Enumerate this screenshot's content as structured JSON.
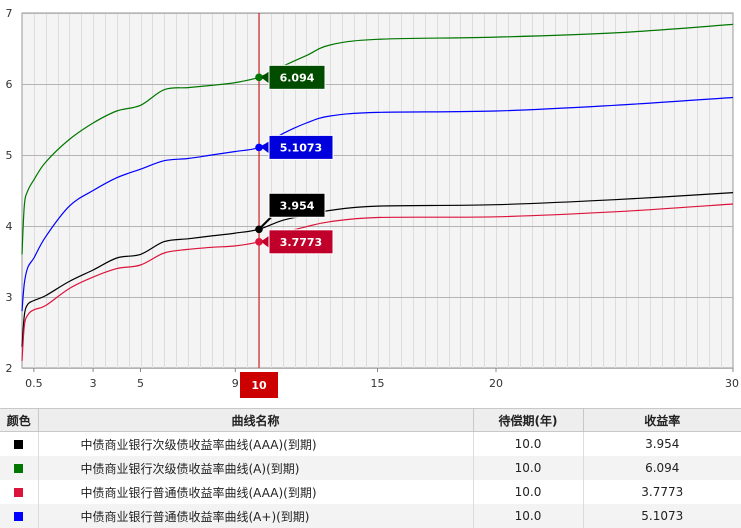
{
  "chart_data": {
    "type": "line",
    "xlim": [
      0,
      30
    ],
    "ylim": [
      2,
      7
    ],
    "x_ticks": [
      0.5,
      3,
      5,
      9,
      15,
      20,
      30
    ],
    "y_ticks": [
      2,
      3,
      4,
      5,
      6,
      7
    ],
    "grid": true,
    "cursor": {
      "x": 10,
      "label": "10",
      "color": "#cc0000"
    },
    "series": [
      {
        "name": "中债商业银行次级债收益率曲线(AAA)(到期)",
        "color": "#000000",
        "x": [
          0,
          0.1,
          0.25,
          0.5,
          1,
          2,
          3,
          4,
          5,
          6,
          7,
          8,
          9,
          10,
          11,
          12,
          13,
          15,
          20,
          25,
          30
        ],
        "y": [
          2.3,
          2.75,
          2.9,
          2.95,
          3.02,
          3.22,
          3.38,
          3.55,
          3.6,
          3.78,
          3.82,
          3.86,
          3.9,
          3.954,
          4.08,
          4.15,
          4.22,
          4.28,
          4.3,
          4.37,
          4.47
        ],
        "cursor_value": "3.954",
        "tag_color": "#000000"
      },
      {
        "name": "中债商业银行次级债收益率曲线(A)(到期)",
        "color": "#007700",
        "x": [
          0,
          0.1,
          0.25,
          0.5,
          1,
          2,
          3,
          4,
          5,
          6,
          7,
          8,
          9,
          10,
          11,
          12,
          13,
          15,
          20,
          25,
          30
        ],
        "y": [
          3.6,
          4.3,
          4.5,
          4.65,
          4.9,
          5.22,
          5.45,
          5.62,
          5.7,
          5.92,
          5.95,
          5.98,
          6.02,
          6.094,
          6.25,
          6.4,
          6.55,
          6.63,
          6.66,
          6.72,
          6.84
        ],
        "cursor_value": "6.094",
        "tag_color": "#004d00"
      },
      {
        "name": "中债商业银行普通债收益率曲线(AAA)(到期)",
        "color": "#dc143c",
        "x": [
          0,
          0.1,
          0.25,
          0.5,
          1,
          2,
          3,
          4,
          5,
          6,
          7,
          8,
          9,
          10,
          11,
          12,
          13,
          15,
          20,
          25,
          30
        ],
        "y": [
          2.1,
          2.6,
          2.75,
          2.82,
          2.88,
          3.12,
          3.28,
          3.4,
          3.45,
          3.62,
          3.67,
          3.7,
          3.72,
          3.7773,
          3.9,
          3.99,
          4.06,
          4.12,
          4.13,
          4.2,
          4.31
        ],
        "cursor_value": "3.7773",
        "tag_color": "#c0002a"
      },
      {
        "name": "中债商业银行普通债收益率曲线(A+)(到期)",
        "color": "#0000ff",
        "x": [
          0,
          0.1,
          0.25,
          0.5,
          1,
          2,
          3,
          4,
          5,
          6,
          7,
          8,
          9,
          10,
          11,
          12,
          13,
          15,
          20,
          25,
          30
        ],
        "y": [
          2.8,
          3.2,
          3.42,
          3.55,
          3.85,
          4.28,
          4.5,
          4.68,
          4.8,
          4.92,
          4.95,
          5.0,
          5.05,
          5.1073,
          5.3,
          5.45,
          5.55,
          5.6,
          5.62,
          5.7,
          5.81
        ],
        "cursor_value": "5.1073",
        "tag_color": "#0000dd"
      }
    ]
  },
  "table": {
    "headers": [
      "颜色",
      "曲线名称",
      "待偿期(年)",
      "收益率"
    ],
    "rows": [
      {
        "color": "#000000",
        "name": "中债商业银行次级债收益率曲线(AAA)(到期)",
        "term": "10.0",
        "yield": "3.954"
      },
      {
        "color": "#007700",
        "name": "中债商业银行次级债收益率曲线(A)(到期)",
        "term": "10.0",
        "yield": "6.094"
      },
      {
        "color": "#dc143c",
        "name": "中债商业银行普通债收益率曲线(AAA)(到期)",
        "term": "10.0",
        "yield": "3.7773"
      },
      {
        "color": "#0000ff",
        "name": "中债商业银行普通债收益率曲线(A+)(到期)",
        "term": "10.0",
        "yield": "5.1073"
      }
    ]
  }
}
